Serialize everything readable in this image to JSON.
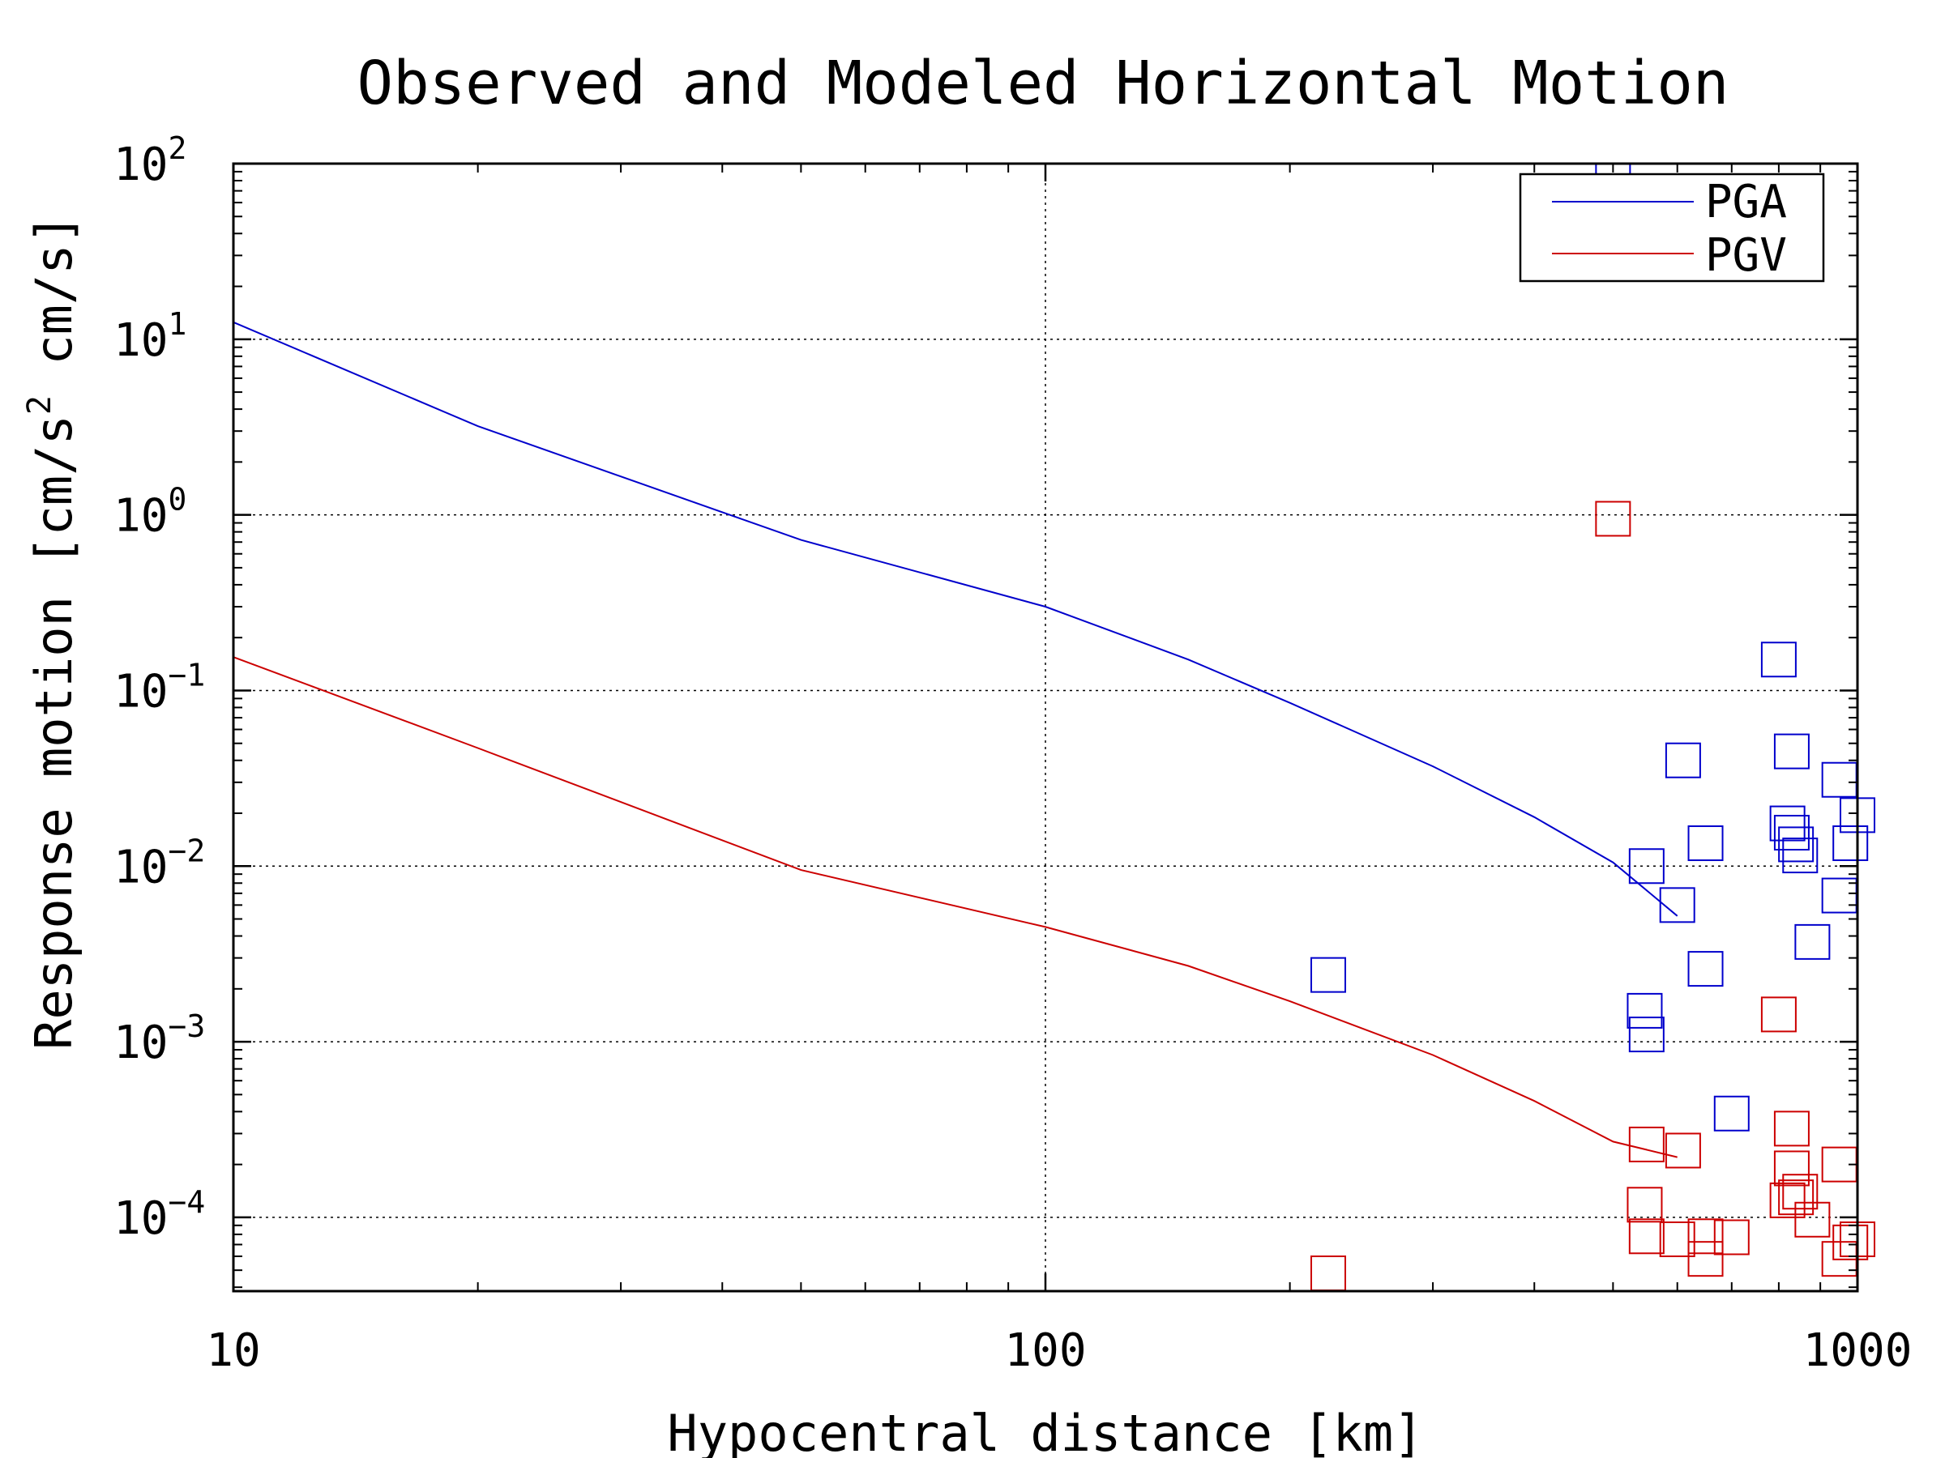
{
  "chart_data": {
    "type": "scatter",
    "title": "Observed and Modeled Horizontal Motion",
    "xlabel": "Hypocentral distance [km]",
    "ylabel": "Response motion [cm/s² cm/s]",
    "ylabel_parts": {
      "text1": "Response motion [cm/s",
      "sup": "2",
      "text2": " cm/s]"
    },
    "x_scale": "log",
    "y_scale": "log",
    "xlim": [
      10,
      1000
    ],
    "ylim": [
      3.8e-05,
      100
    ],
    "grid": true,
    "legend_position": "top-right",
    "x_ticks": [
      {
        "value": 10,
        "label": "10"
      },
      {
        "value": 100,
        "label": "100"
      },
      {
        "value": 1000,
        "label": "1000"
      }
    ],
    "y_ticks": [
      {
        "value": 0.0001,
        "base": "10",
        "exp": "−4"
      },
      {
        "value": 0.001,
        "base": "10",
        "exp": "−3"
      },
      {
        "value": 0.01,
        "base": "10",
        "exp": "−2"
      },
      {
        "value": 0.1,
        "base": "10",
        "exp": "−1"
      },
      {
        "value": 1,
        "base": "10",
        "exp": "0"
      },
      {
        "value": 10,
        "base": "10",
        "exp": "1"
      },
      {
        "value": 100,
        "base": "10",
        "exp": "2"
      }
    ],
    "series": [
      {
        "name": "PGA",
        "color": "#0000cc",
        "model": {
          "x": [
            10,
            20,
            50,
            100,
            150,
            200,
            300,
            400,
            500,
            600
          ],
          "y": [
            12.5,
            3.2,
            0.72,
            0.3,
            0.15,
            0.085,
            0.037,
            0.019,
            0.0105,
            0.0052
          ]
        },
        "observed": {
          "x": [
            500,
            223,
            550,
            547,
            550,
            600,
            610,
            650,
            650,
            700,
            800,
            830,
            830,
            840,
            850,
            820,
            880,
            950,
            950,
            980,
            1000
          ],
          "y": [
            80,
            0.0024,
            0.01,
            0.0015,
            0.0011,
            0.006,
            0.04,
            0.0135,
            0.0026,
            0.00039,
            0.15,
            0.045,
            0.0155,
            0.0133,
            0.0115,
            0.0175,
            0.0037,
            0.031,
            0.0068,
            0.0135,
            0.0195
          ]
        }
      },
      {
        "name": "PGV",
        "color": "#cc0000",
        "model": {
          "x": [
            10,
            20,
            50,
            100,
            150,
            200,
            300,
            400,
            500,
            600
          ],
          "y": [
            0.155,
            0.047,
            0.0095,
            0.0045,
            0.0027,
            0.0017,
            0.00084,
            0.00046,
            0.00027,
            0.00022
          ]
        },
        "observed": {
          "x": [
            500,
            223,
            550,
            547,
            550,
            600,
            610,
            650,
            650,
            700,
            800,
            830,
            830,
            840,
            850,
            820,
            880,
            950,
            950,
            980,
            1000
          ],
          "y": [
            0.95,
            4.8e-05,
            0.00026,
            0.000118,
            7.8e-05,
            7.5e-05,
            0.00024,
            7.8e-05,
            5.8e-05,
            7.7e-05,
            0.00143,
            0.00032,
            0.00019,
            0.00013,
            0.00014,
            0.000125,
            9.7e-05,
            0.0002,
            5.8e-05,
            7.2e-05,
            7.5e-05
          ]
        }
      }
    ]
  }
}
